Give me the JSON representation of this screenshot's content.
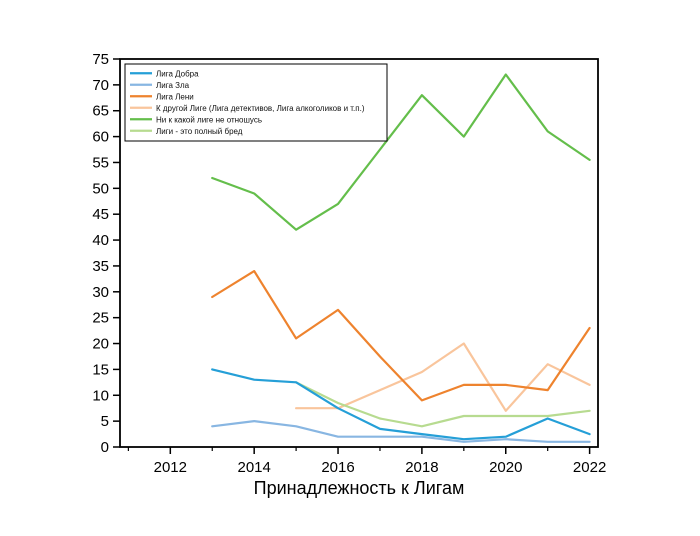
{
  "figure": {
    "background": "#ffffff",
    "frame_color": "#000000",
    "tick_color": "#000000",
    "label_color": "#000000"
  },
  "chart_data": {
    "type": "line",
    "title": "",
    "xlabel": "Принадлежность к Лигам",
    "ylabel": "",
    "xlim": [
      2010.8,
      2022.2
    ],
    "ylim": [
      0,
      75
    ],
    "xticks_major": [
      2012,
      2014,
      2016,
      2018,
      2020,
      2022
    ],
    "xticks_minor": [
      2011,
      2013,
      2015,
      2017,
      2019,
      2021
    ],
    "yticks": [
      0,
      5,
      10,
      15,
      20,
      25,
      30,
      35,
      40,
      45,
      50,
      55,
      60,
      65,
      70,
      75
    ],
    "grid": false,
    "legend_position": "top-left",
    "legend_border": true,
    "z_order": [
      3,
      5,
      1,
      2,
      0,
      4
    ],
    "series": [
      {
        "name": "Лига Добра",
        "color": "#259fd7",
        "x": [
          2013,
          2014,
          2015,
          2016,
          2017,
          2018,
          2019,
          2020,
          2021,
          2022
        ],
        "y": [
          15,
          13,
          12.5,
          7.5,
          3.5,
          2.5,
          1.5,
          2,
          5.5,
          2.5
        ]
      },
      {
        "name": "Лига Зла",
        "color": "#88b6e2",
        "x": [
          2013,
          2014,
          2015,
          2016,
          2017,
          2018,
          2019,
          2020,
          2021,
          2022
        ],
        "y": [
          4,
          5,
          4,
          2,
          2,
          2,
          1,
          1.5,
          1,
          1
        ]
      },
      {
        "name": "Лига Лени",
        "color": "#ee832e",
        "x": [
          2013,
          2014,
          2015,
          2016,
          2017,
          2018,
          2019,
          2020,
          2021,
          2022
        ],
        "y": [
          29,
          34,
          21,
          26.5,
          17.5,
          9,
          12,
          12,
          11,
          23
        ]
      },
      {
        "name": "К другой Лиге (Лига  детективов, Лига алкоголиков и т.п.)",
        "color": "#f9c59c",
        "x": [
          2015,
          2016,
          2017,
          2018,
          2019,
          2020,
          2021,
          2022
        ],
        "y": [
          7.5,
          7.5,
          11,
          14.5,
          20,
          7,
          16,
          12
        ]
      },
      {
        "name": "Ни к какой лиге не отношусь",
        "color": "#64be4b",
        "x": [
          2013,
          2014,
          2015,
          2016,
          2017,
          2018,
          2019,
          2020,
          2021,
          2022
        ],
        "y": [
          52,
          49,
          42,
          47,
          57.5,
          68,
          60,
          72,
          61,
          55.5
        ]
      },
      {
        "name": "Лиги - это полный бред",
        "color": "#b7db90",
        "x": [
          2015,
          2016,
          2017,
          2018,
          2019,
          2020,
          2021,
          2022
        ],
        "y": [
          12.5,
          8.5,
          5.5,
          4,
          6,
          6,
          6,
          7
        ]
      }
    ]
  }
}
